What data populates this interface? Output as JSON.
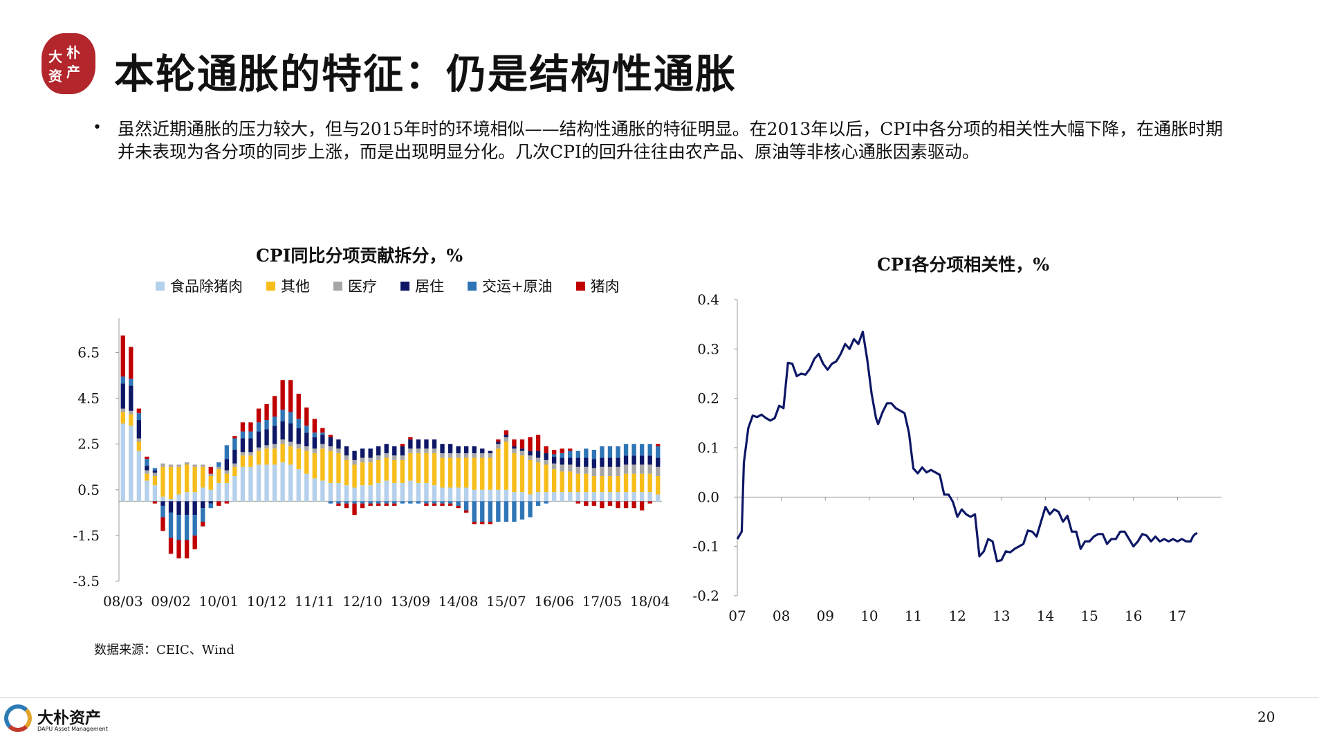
{
  "header": {
    "seal_text": [
      "大",
      "朴",
      "资",
      "产"
    ],
    "title": "本轮通胀的特征：仍是结构性通胀"
  },
  "body": {
    "bullet_symbol": "•",
    "bullet": "虽然近期通胀的压力较大，但与2015年时的环境相似——结构性通胀的特征明显。在2013年以后，CPI中各分项的相关性大幅下降，在通胀时期并未表现为各分项的同步上涨，而是出现明显分化。几次CPI的回升往往由农产品、原油等非核心通胀因素驱动。"
  },
  "source": "数据来源：CEIC、Wind",
  "footer": {
    "brand_cn": "大朴资产",
    "brand_en": "DAPU Asset Management",
    "page_number": "20"
  },
  "chart_data": [
    {
      "type": "bar",
      "stacked": true,
      "title": "CPI同比分项贡献拆分，%",
      "legend_position": "top",
      "series": [
        {
          "name": "食品除猪肉",
          "color": "#b4d0eb"
        },
        {
          "name": "其他",
          "color": "#f7bd1a"
        },
        {
          "name": "医疗",
          "color": "#a6a6a6"
        },
        {
          "name": "居住",
          "color": "#0d1766"
        },
        {
          "name": "交运+原油",
          "color": "#2e75b6"
        },
        {
          "name": "猪肉",
          "color": "#c00000"
        }
      ],
      "x_tick_labels": [
        "08/03",
        "09/02",
        "10/01",
        "10/12",
        "11/11",
        "12/10",
        "13/09",
        "14/08",
        "15/07",
        "16/06",
        "17/05",
        "18/04"
      ],
      "y_ticks": [
        6.5,
        4.5,
        2.5,
        0.5,
        -1.5,
        -3.5
      ],
      "ylim": [
        -3.5,
        8.0
      ],
      "periods": [
        "08/03",
        "08/05",
        "08/07",
        "08/09",
        "08/11",
        "09/01",
        "09/02",
        "09/04",
        "09/06",
        "09/08",
        "09/10",
        "09/12",
        "10/01",
        "10/03",
        "10/05",
        "10/07",
        "10/09",
        "10/11",
        "10/12",
        "11/02",
        "11/04",
        "11/06",
        "11/08",
        "11/10",
        "11/11",
        "12/01",
        "12/03",
        "12/05",
        "12/07",
        "12/09",
        "12/10",
        "12/12",
        "13/02",
        "13/04",
        "13/06",
        "13/08",
        "13/09",
        "13/11",
        "14/01",
        "14/03",
        "14/05",
        "14/07",
        "14/08",
        "14/10",
        "14/12",
        "15/02",
        "15/04",
        "15/06",
        "15/07",
        "15/09",
        "15/11",
        "16/01",
        "16/03",
        "16/05",
        "16/06",
        "16/08",
        "16/10",
        "16/12",
        "17/02",
        "17/04",
        "17/05",
        "17/07",
        "17/09",
        "17/11",
        "18/01",
        "18/03",
        "18/04",
        "18/06"
      ],
      "values": {
        "食品除猪肉": [
          3.4,
          3.3,
          2.2,
          0.9,
          0.7,
          0.2,
          0.1,
          0.3,
          0.4,
          0.4,
          0.6,
          0.5,
          0.8,
          0.8,
          1.1,
          1.5,
          1.5,
          1.6,
          1.6,
          1.6,
          1.7,
          1.6,
          1.4,
          1.2,
          1.0,
          0.9,
          0.8,
          0.8,
          0.7,
          0.6,
          0.7,
          0.7,
          0.8,
          0.9,
          0.8,
          0.8,
          0.9,
          0.8,
          0.8,
          0.7,
          0.6,
          0.6,
          0.6,
          0.6,
          0.5,
          0.5,
          0.5,
          0.5,
          0.5,
          0.4,
          0.4,
          0.3,
          0.4,
          0.4,
          0.4,
          0.4,
          0.4,
          0.4,
          0.4,
          0.4,
          0.4,
          0.4,
          0.4,
          0.4,
          0.4,
          0.4,
          0.4,
          0.3
        ],
        "其他": [
          0.5,
          0.5,
          0.4,
          0.3,
          0.4,
          1.3,
          1.4,
          1.2,
          1.2,
          1.1,
          0.9,
          0.6,
          0.6,
          0.4,
          0.4,
          0.5,
          0.5,
          0.6,
          0.7,
          0.7,
          0.8,
          0.8,
          0.9,
          1.0,
          1.1,
          1.4,
          1.4,
          1.3,
          1.1,
          1.0,
          1.0,
          1.0,
          1.0,
          1.0,
          1.0,
          1.0,
          1.2,
          1.3,
          1.3,
          1.4,
          1.3,
          1.3,
          1.3,
          1.3,
          1.4,
          1.4,
          1.4,
          1.8,
          2.1,
          1.7,
          1.6,
          1.5,
          1.3,
          1.2,
          1.0,
          0.9,
          0.9,
          0.8,
          0.8,
          0.7,
          0.7,
          0.7,
          0.7,
          0.8,
          0.8,
          0.8,
          0.8,
          0.8
        ],
        "医疗": [
          0.15,
          0.15,
          0.15,
          0.15,
          0.15,
          0.15,
          0.1,
          0.1,
          0.1,
          0.1,
          0.1,
          0.1,
          0.1,
          0.15,
          0.15,
          0.15,
          0.15,
          0.15,
          0.15,
          0.2,
          0.2,
          0.2,
          0.2,
          0.2,
          0.2,
          0.2,
          0.2,
          0.2,
          0.2,
          0.2,
          0.2,
          0.2,
          0.2,
          0.2,
          0.2,
          0.2,
          0.2,
          0.2,
          0.2,
          0.2,
          0.2,
          0.2,
          0.2,
          0.2,
          0.2,
          0.2,
          0.2,
          0.2,
          0.2,
          0.2,
          0.2,
          0.2,
          0.2,
          0.2,
          0.25,
          0.3,
          0.3,
          0.3,
          0.3,
          0.35,
          0.4,
          0.4,
          0.4,
          0.4,
          0.4,
          0.4,
          0.4,
          0.4
        ],
        "居住": [
          1.1,
          1.1,
          0.8,
          0.2,
          0.1,
          -0.2,
          -0.5,
          -0.6,
          -0.6,
          -0.6,
          -0.3,
          -0.1,
          0.0,
          0.5,
          0.6,
          0.6,
          0.6,
          0.7,
          0.7,
          0.8,
          0.8,
          0.8,
          0.7,
          0.6,
          0.5,
          0.4,
          0.4,
          0.4,
          0.4,
          0.4,
          0.4,
          0.4,
          0.4,
          0.4,
          0.4,
          0.4,
          0.4,
          0.4,
          0.4,
          0.4,
          0.4,
          0.4,
          0.3,
          0.3,
          0.3,
          0.2,
          0.1,
          0.1,
          0.1,
          0.1,
          0.1,
          0.2,
          0.3,
          0.3,
          0.3,
          0.3,
          0.3,
          0.4,
          0.4,
          0.4,
          0.4,
          0.4,
          0.4,
          0.4,
          0.4,
          0.4,
          0.4,
          0.4
        ],
        "交运+原油": [
          0.3,
          0.3,
          0.3,
          0.3,
          0.1,
          -0.5,
          -1.1,
          -1.1,
          -1.1,
          -0.9,
          -0.6,
          -0.2,
          0.2,
          0.6,
          0.5,
          0.3,
          0.3,
          0.4,
          0.4,
          0.4,
          0.5,
          0.5,
          0.4,
          0.3,
          0.2,
          0.1,
          -0.1,
          -0.1,
          -0.1,
          -0.1,
          -0.1,
          -0.1,
          -0.1,
          -0.1,
          -0.1,
          -0.1,
          -0.1,
          -0.1,
          -0.1,
          -0.1,
          -0.1,
          -0.1,
          -0.2,
          -0.4,
          -0.9,
          -0.9,
          -0.9,
          -0.9,
          -0.9,
          -0.9,
          -0.8,
          -0.7,
          -0.2,
          -0.1,
          0.1,
          0.2,
          0.3,
          0.3,
          0.4,
          0.4,
          0.5,
          0.5,
          0.5,
          0.5,
          0.5,
          0.5,
          0.5,
          0.5
        ],
        "猪肉": [
          1.8,
          1.4,
          0.2,
          0.1,
          -0.1,
          -0.6,
          -0.7,
          -0.8,
          -0.8,
          -0.6,
          -0.2,
          0.3,
          -0.2,
          -0.1,
          0.1,
          0.4,
          0.4,
          0.6,
          0.7,
          0.9,
          1.3,
          1.4,
          1.1,
          0.8,
          0.6,
          0.2,
          0.1,
          -0.1,
          -0.2,
          -0.5,
          -0.2,
          -0.1,
          -0.1,
          -0.1,
          -0.1,
          0.1,
          0.1,
          0.0,
          -0.1,
          -0.1,
          -0.1,
          -0.1,
          -0.1,
          -0.1,
          -0.1,
          -0.1,
          -0.1,
          0.1,
          0.2,
          0.3,
          0.4,
          0.6,
          0.7,
          0.3,
          0.2,
          0.2,
          0.1,
          -0.1,
          -0.2,
          -0.2,
          -0.3,
          -0.2,
          -0.3,
          -0.3,
          -0.3,
          -0.4,
          -0.1,
          0.1
        ]
      }
    },
    {
      "type": "line",
      "title": "CPI各分项相关性，%",
      "legend_position": "none",
      "x_tick_labels": [
        "07",
        "08",
        "09",
        "10",
        "11",
        "12",
        "13",
        "14",
        "15",
        "16",
        "17"
      ],
      "y_ticks": [
        0.4,
        0.3,
        0.2,
        0.1,
        0.0,
        -0.1,
        -0.2
      ],
      "ylim": [
        -0.2,
        0.4
      ],
      "xlim": [
        2007.0,
        2018.0
      ],
      "line_color": "#0d1766",
      "series": [
        {
          "x": [
            2007.0,
            2007.1,
            2007.15,
            2007.25,
            2007.35,
            2007.45,
            2007.55,
            2007.65,
            2007.75,
            2007.85,
            2007.95,
            2008.05,
            2008.15,
            2008.25,
            2008.35,
            2008.45,
            2008.55,
            2008.65,
            2008.75,
            2008.85,
            2008.95,
            2009.05,
            2009.15,
            2009.25,
            2009.35,
            2009.45,
            2009.55,
            2009.65,
            2009.75,
            2009.85,
            2009.95,
            2010.05,
            2010.15,
            2010.2,
            2010.3,
            2010.4,
            2010.5,
            2010.6,
            2010.7,
            2010.8,
            2010.9,
            2011.0,
            2011.1,
            2011.2,
            2011.3,
            2011.4,
            2011.5,
            2011.6,
            2011.7,
            2011.8,
            2011.9,
            2012.0,
            2012.1,
            2012.2,
            2012.3,
            2012.4,
            2012.5,
            2012.6,
            2012.7,
            2012.8,
            2012.9,
            2013.0,
            2013.1,
            2013.2,
            2013.3,
            2013.4,
            2013.5,
            2013.6,
            2013.7,
            2013.8,
            2013.9,
            2014.0,
            2014.1,
            2014.2,
            2014.3,
            2014.4,
            2014.5,
            2014.6,
            2014.7,
            2014.8,
            2014.9,
            2015.0,
            2015.1,
            2015.2,
            2015.3,
            2015.4,
            2015.5,
            2015.6,
            2015.7,
            2015.8,
            2015.9,
            2016.0,
            2016.1,
            2016.2,
            2016.3,
            2016.4,
            2016.5,
            2016.6,
            2016.7,
            2016.8,
            2016.9,
            2017.0,
            2017.1,
            2017.2,
            2017.3,
            2017.35,
            2017.4,
            2017.45
          ],
          "y": [
            -0.085,
            -0.07,
            0.07,
            0.14,
            0.165,
            0.162,
            0.167,
            0.16,
            0.155,
            0.16,
            0.185,
            0.18,
            0.272,
            0.27,
            0.245,
            0.25,
            0.248,
            0.26,
            0.28,
            0.29,
            0.27,
            0.258,
            0.27,
            0.275,
            0.29,
            0.31,
            0.3,
            0.32,
            0.31,
            0.335,
            0.28,
            0.21,
            0.16,
            0.148,
            0.172,
            0.19,
            0.19,
            0.18,
            0.175,
            0.17,
            0.13,
            0.058,
            0.048,
            0.06,
            0.05,
            0.055,
            0.05,
            0.045,
            0.005,
            0.005,
            -0.01,
            -0.04,
            -0.025,
            -0.035,
            -0.04,
            -0.035,
            -0.12,
            -0.11,
            -0.085,
            -0.09,
            -0.13,
            -0.128,
            -0.11,
            -0.112,
            -0.105,
            -0.1,
            -0.095,
            -0.068,
            -0.07,
            -0.08,
            -0.05,
            -0.02,
            -0.035,
            -0.025,
            -0.03,
            -0.05,
            -0.038,
            -0.07,
            -0.07,
            -0.105,
            -0.09,
            -0.09,
            -0.08,
            -0.075,
            -0.075,
            -0.095,
            -0.085,
            -0.085,
            -0.07,
            -0.07,
            -0.085,
            -0.1,
            -0.09,
            -0.075,
            -0.078,
            -0.09,
            -0.08,
            -0.09,
            -0.085,
            -0.09,
            -0.085,
            -0.09,
            -0.085,
            -0.09,
            -0.09,
            -0.08,
            -0.075,
            -0.073
          ]
        }
      ]
    }
  ]
}
